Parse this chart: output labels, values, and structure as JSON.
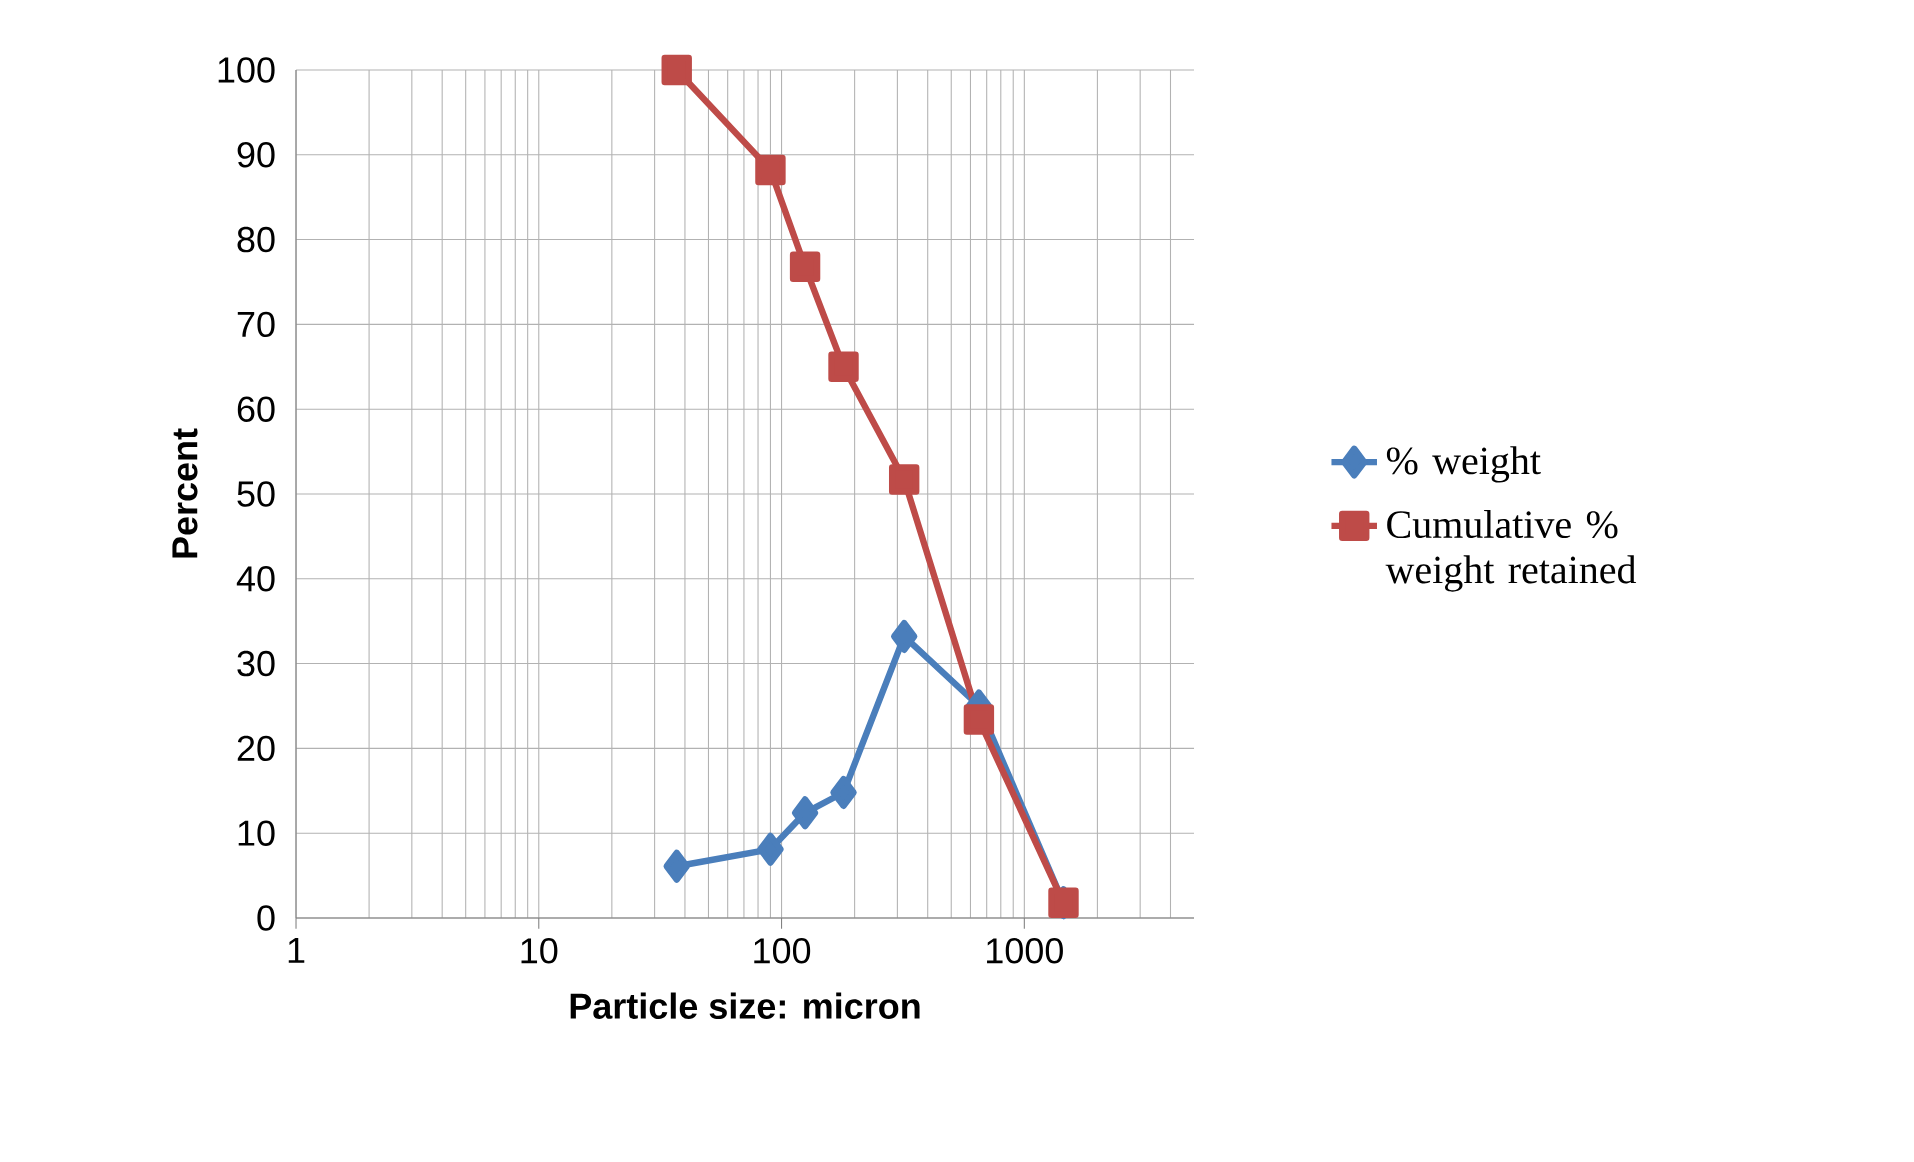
{
  "chart_data": {
    "type": "line",
    "xlabel": "Particle size: micron",
    "ylabel": "Percent",
    "log": "x",
    "xlim": [
      1,
      5000
    ],
    "xticks": [
      1,
      10,
      100,
      1000
    ],
    "ylim": [
      0,
      100
    ],
    "yticks": [
      0,
      10,
      20,
      30,
      40,
      50,
      60,
      70,
      80,
      90,
      100
    ],
    "grid": true,
    "legend": "right",
    "line_style": "solid",
    "x": [
      37,
      90,
      125,
      180,
      320,
      650,
      1450
    ],
    "series": [
      {
        "name": "% weight",
        "color": "#4a7ebb",
        "marker": "diamond",
        "values": [
          6.1,
          8.1,
          12.4,
          14.8,
          33.2,
          25,
          1.8
        ]
      },
      {
        "name": "Cumulative % weight retained",
        "color": "#be4b48",
        "marker": "square",
        "values": [
          100,
          88.2,
          76.8,
          65.0,
          51.7,
          23.4,
          1.8
        ]
      }
    ]
  }
}
